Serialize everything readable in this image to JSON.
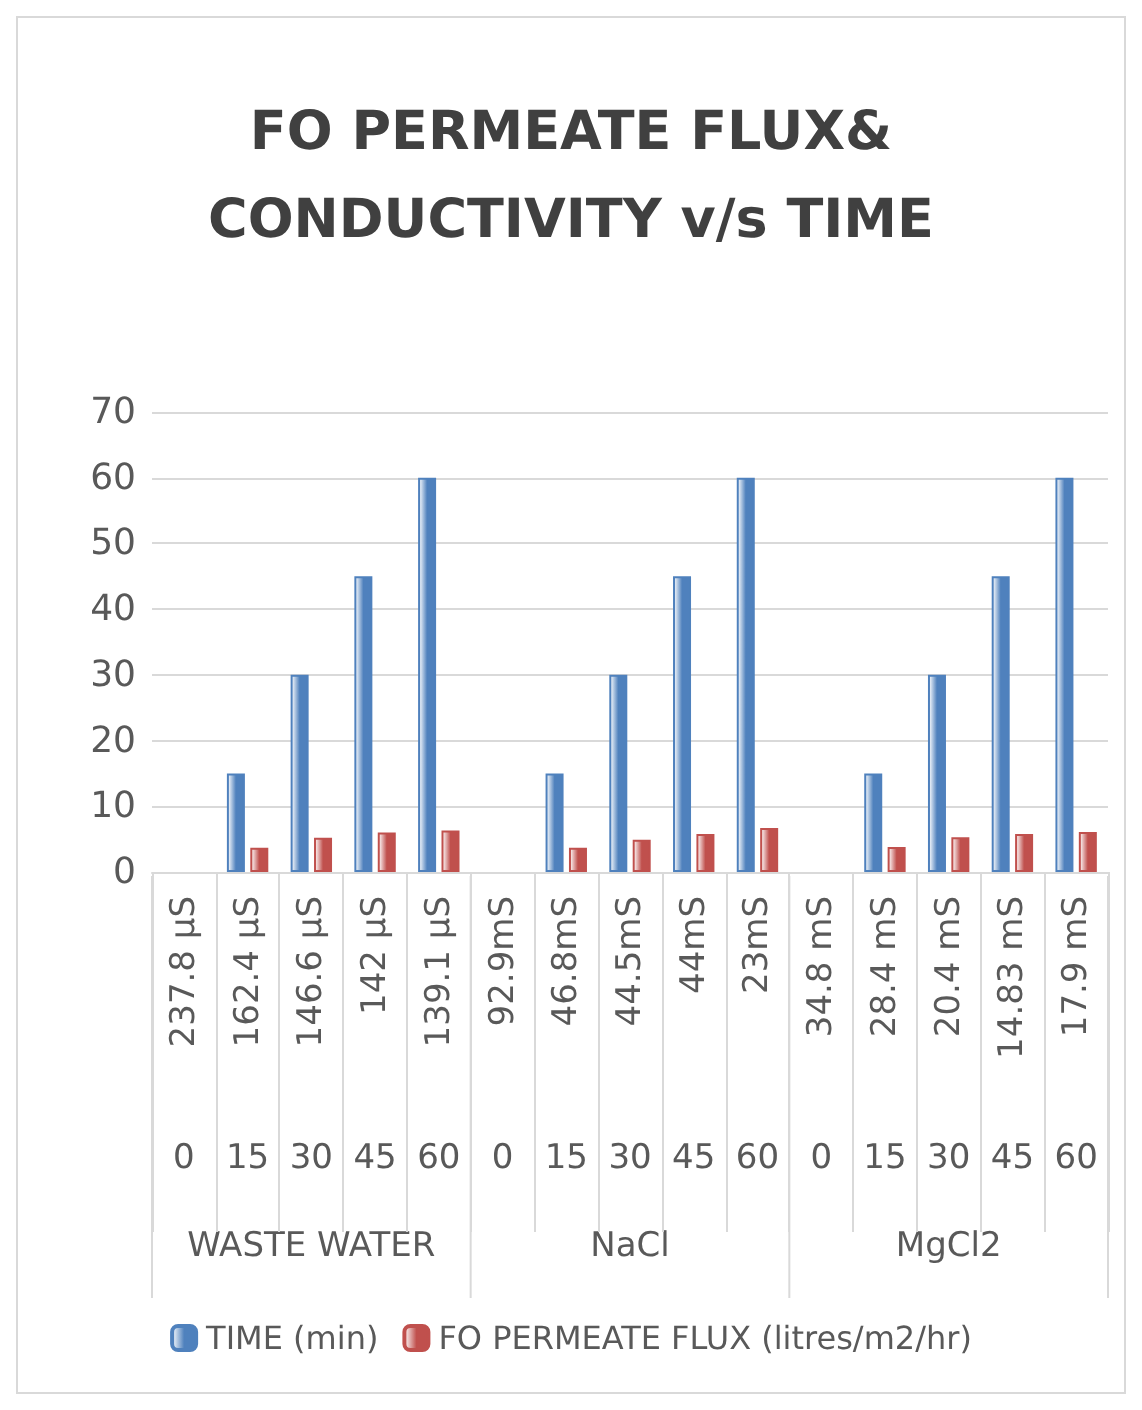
{
  "chart_data": {
    "type": "bar",
    "title": "FO PERMEATE FLUX&CONDUCTIVITY v/s TIME",
    "categories": [
      "237.8 µS",
      "162.4 µS",
      "146.6 µS",
      "142 µS",
      "139.1 µS",
      "92.9mS",
      "46.8mS",
      "44.5mS",
      "44mS",
      "23mS",
      "34.8 mS",
      "28.4 mS",
      "20.4 mS",
      "14.83 mS",
      "17.9 mS"
    ],
    "series": [
      {
        "name": "TIME (min)",
        "color": "#4f81bd",
        "values": [
          0,
          15,
          30,
          45,
          60,
          0,
          15,
          30,
          45,
          60,
          0,
          15,
          30,
          45,
          60
        ]
      },
      {
        "name": "FO PERMEATE FLUX (litres/m2/hr)",
        "color": "#c0504d",
        "values": [
          0,
          3.7,
          5.2,
          6.0,
          6.3,
          0,
          3.7,
          4.9,
          5.8,
          6.7,
          0,
          3.8,
          5.3,
          5.8,
          6.1
        ]
      }
    ],
    "annotations": [
      "0",
      "15",
      "30",
      "45",
      "60",
      "0",
      "15",
      "30",
      "45",
      "60",
      "0",
      "15",
      "30",
      "45",
      "60",
      "WASTE WATER",
      "NaCl",
      "MgCl2"
    ],
    "ylim": [
      0,
      70
    ],
    "yticks": [
      0,
      10,
      20,
      30,
      40,
      50,
      60,
      70
    ],
    "grid": "y",
    "legend": "bottom"
  }
}
